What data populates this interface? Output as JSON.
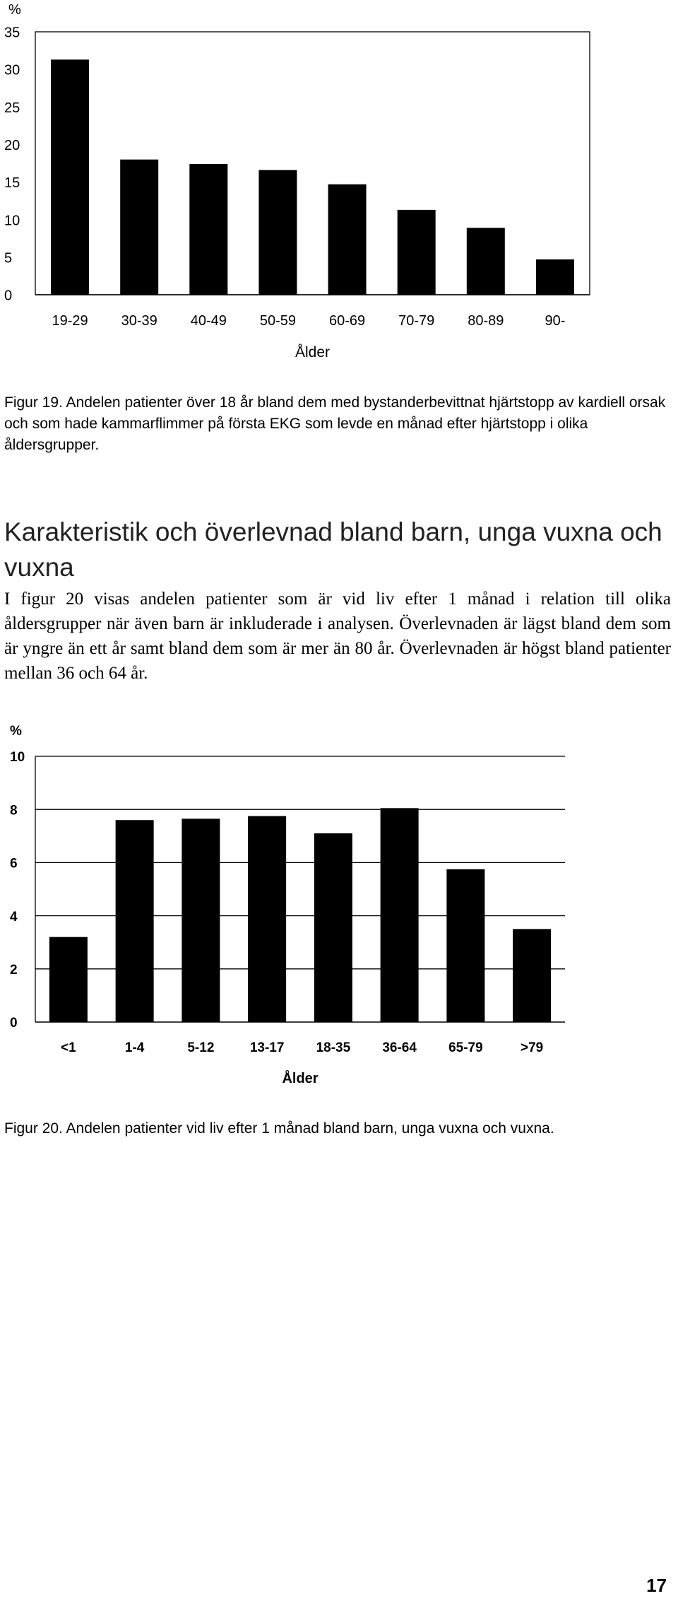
{
  "chart_data": [
    {
      "type": "bar",
      "ylabel": "%",
      "xlabel": "Ålder",
      "ylim": [
        0,
        35
      ],
      "yticks": [
        0,
        5,
        10,
        15,
        20,
        25,
        30,
        35
      ],
      "categories": [
        "19-29",
        "30-39",
        "40-49",
        "50-59",
        "60-69",
        "70-79",
        "80-89",
        "90-"
      ],
      "values": [
        31.3,
        18.0,
        17.4,
        16.6,
        14.7,
        11.3,
        8.9,
        4.7
      ],
      "grid": false,
      "bar_color": "#000000"
    },
    {
      "type": "bar",
      "ylabel": "%",
      "xlabel": "Ålder",
      "ylim": [
        0,
        10
      ],
      "yticks": [
        0,
        2,
        4,
        6,
        8,
        10
      ],
      "categories": [
        "<1",
        "1-4",
        "5-12",
        "13-17",
        "18-35",
        "36-64",
        "65-79",
        ">79"
      ],
      "values": [
        3.2,
        7.6,
        7.65,
        7.75,
        7.1,
        8.05,
        5.75,
        3.5
      ],
      "grid": true,
      "bar_color": "#000000"
    }
  ],
  "figure19_caption": "Figur 19. Andelen patienter över 18 år bland dem med bystanderbevittnat hjärtstopp av kardiell orsak och som hade kammarflimmer på första EKG som levde en månad efter hjärtstopp i olika åldersgrupper.",
  "section_heading": "Karakteristik och överlevnad bland barn, unga vuxna och vuxna",
  "section_body": "I figur 20 visas andelen patienter som är vid liv efter 1 månad i relation till olika åldersgrupper när även barn är inkluderade i analysen. Överlevnaden är lägst bland dem som är yngre än ett år samt bland dem som är mer än 80 år. Överlev­naden är högst bland patienter mellan 36 och 64 år.",
  "figure20_caption": "Figur 20. Andelen patienter  vid liv efter 1 månad bland barn, unga vuxna och vuxna.",
  "page_number": "17"
}
